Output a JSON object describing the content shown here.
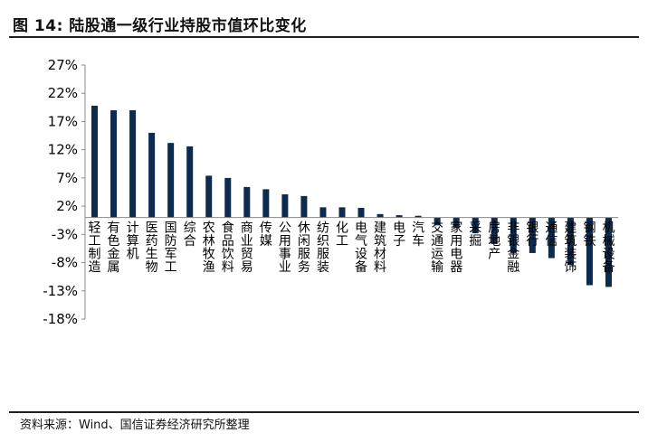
{
  "title": "图 14:  陆股通一级行业持股市值环比变化",
  "source": "资料来源：Wind、国信证券经济研究所整理",
  "colors": {
    "bar": "#0d2a4f",
    "axis": "#888888",
    "text": "#000000"
  },
  "chart_data": {
    "type": "bar",
    "title": "",
    "xlabel": "",
    "ylabel": "",
    "ylim": [
      -18,
      27
    ],
    "yticks": [
      "27%",
      "22%",
      "17%",
      "12%",
      "7%",
      "2%",
      "-3%",
      "-8%",
      "-13%",
      "-18%"
    ],
    "ytick_values": [
      27,
      22,
      17,
      12,
      7,
      2,
      -3,
      -8,
      -13,
      -18
    ],
    "grid": false,
    "categories": [
      "轻工制造",
      "有色金属",
      "计算机",
      "医药生物",
      "国防军工",
      "综合",
      "农林牧渔",
      "食品饮料",
      "商业贸易",
      "传媒",
      "公用事业",
      "休闲服务",
      "纺织服装",
      "化工",
      "电气设备",
      "建筑材料",
      "电子",
      "汽车",
      "交通运输",
      "家用电器",
      "采掘",
      "房地产",
      "非银金融",
      "银行",
      "通信",
      "建筑装饰",
      "钢铁",
      "机械设备"
    ],
    "values": [
      19.8,
      19.0,
      19.0,
      15.0,
      13.2,
      12.6,
      7.4,
      7.0,
      5.4,
      5.0,
      4.1,
      3.8,
      1.8,
      1.8,
      1.7,
      0.6,
      0.4,
      0.3,
      -1.4,
      -1.8,
      -2.8,
      -4.7,
      -6.3,
      -6.3,
      -7.2,
      -8.4,
      -12.0,
      -12.3
    ]
  }
}
